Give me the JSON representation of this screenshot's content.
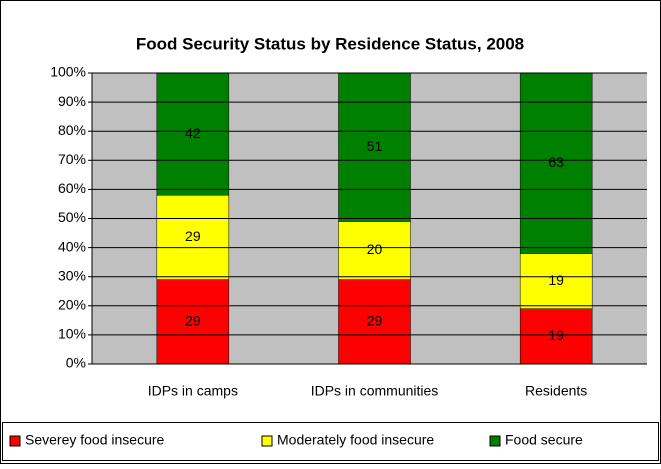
{
  "chart_data": {
    "type": "stacked_bar",
    "title": "Food Security Status by Residence Status, 2008",
    "categories": [
      "IDPs in camps",
      "IDPs in communities",
      "Residents"
    ],
    "series": [
      {
        "name": "Severey food insecure",
        "color": "#ff0000",
        "values": [
          29,
          29,
          19
        ]
      },
      {
        "name": "Moderately food insecure",
        "color": "#ffff00",
        "values": [
          29,
          20,
          19
        ]
      },
      {
        "name": "Food secure",
        "color": "#008000",
        "values": [
          42,
          51,
          63
        ]
      }
    ],
    "ylim": [
      0,
      100
    ],
    "yticks": [
      {
        "value": 0,
        "label": "0%"
      },
      {
        "value": 10,
        "label": "10%"
      },
      {
        "value": 20,
        "label": "20%"
      },
      {
        "value": 30,
        "label": "30%"
      },
      {
        "value": 40,
        "label": "40%"
      },
      {
        "value": 50,
        "label": "50%"
      },
      {
        "value": 60,
        "label": "60%"
      },
      {
        "value": 70,
        "label": "70%"
      },
      {
        "value": 80,
        "label": "80%"
      },
      {
        "value": 90,
        "label": "90%"
      },
      {
        "value": 100,
        "label": "100%"
      }
    ],
    "grid": true,
    "legend": "bottom"
  }
}
